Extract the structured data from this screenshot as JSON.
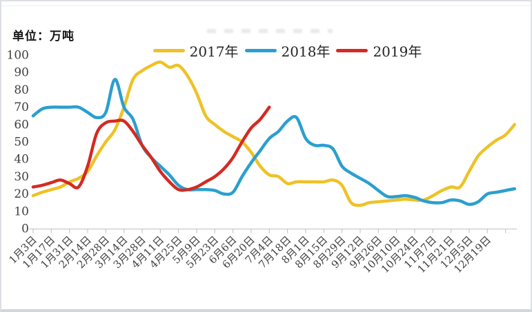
{
  "chart_data": {
    "type": "line",
    "unit_label": "单位：万吨",
    "ylim": [
      0,
      100
    ],
    "y_ticks": [
      0,
      10,
      20,
      30,
      40,
      50,
      60,
      70,
      80,
      90,
      100
    ],
    "grid": false,
    "legend_position": "top-center",
    "points_per_tick": 2,
    "x_tick_labels": [
      "1月3日",
      "1月17日",
      "1月31日",
      "2月14日",
      "2月28日",
      "3月14日",
      "3月28日",
      "4月11日",
      "4月25日",
      "5月9日",
      "5月23日",
      "6月6日",
      "6月20日",
      "7月4日",
      "7月18日",
      "8月1日",
      "8月15日",
      "8月29日",
      "9月12日",
      "9月26日",
      "10月10日",
      "10月24日",
      "11月7日",
      "11月21日",
      "12月5日",
      "12月19日"
    ],
    "axis_color": "#bfbfbf",
    "label_color": "#3f3f3f",
    "series": [
      {
        "name": "2017年",
        "color": "#EEC227",
        "values": [
          19,
          21,
          22.5,
          24,
          27,
          29,
          33,
          42,
          50,
          57,
          70,
          86,
          91,
          94,
          96,
          93,
          94,
          88,
          78,
          65,
          60,
          56,
          53,
          50,
          44,
          36,
          31,
          30,
          26,
          27,
          27,
          27,
          27,
          28,
          25,
          15,
          13.5,
          15,
          15.5,
          16,
          16.5,
          17,
          16.5,
          16.5,
          19,
          22,
          24,
          24,
          33,
          42,
          47,
          51,
          54,
          60
        ]
      },
      {
        "name": "2018年",
        "color": "#2B9FD0",
        "values": [
          65,
          69,
          70,
          70,
          70,
          70,
          67,
          64,
          67,
          86,
          70,
          63,
          48,
          41,
          36,
          31,
          25,
          22.5,
          22.5,
          22.5,
          22,
          20,
          21,
          30,
          38,
          45,
          52,
          56,
          62,
          64,
          52,
          48,
          48,
          46,
          36,
          32,
          29,
          26,
          22,
          18.5,
          18.5,
          19,
          18,
          16,
          15,
          15,
          16.5,
          16,
          14,
          15.5,
          20,
          21,
          22,
          23
        ]
      },
      {
        "name": "2019年",
        "color": "#D42A23",
        "values": [
          24,
          25,
          26.5,
          28,
          26,
          24,
          36,
          55,
          61,
          62,
          62,
          56,
          48,
          41,
          33,
          27,
          22.5,
          22.5,
          24,
          27,
          30,
          34.5,
          41,
          50,
          58,
          63,
          70
        ]
      }
    ]
  }
}
